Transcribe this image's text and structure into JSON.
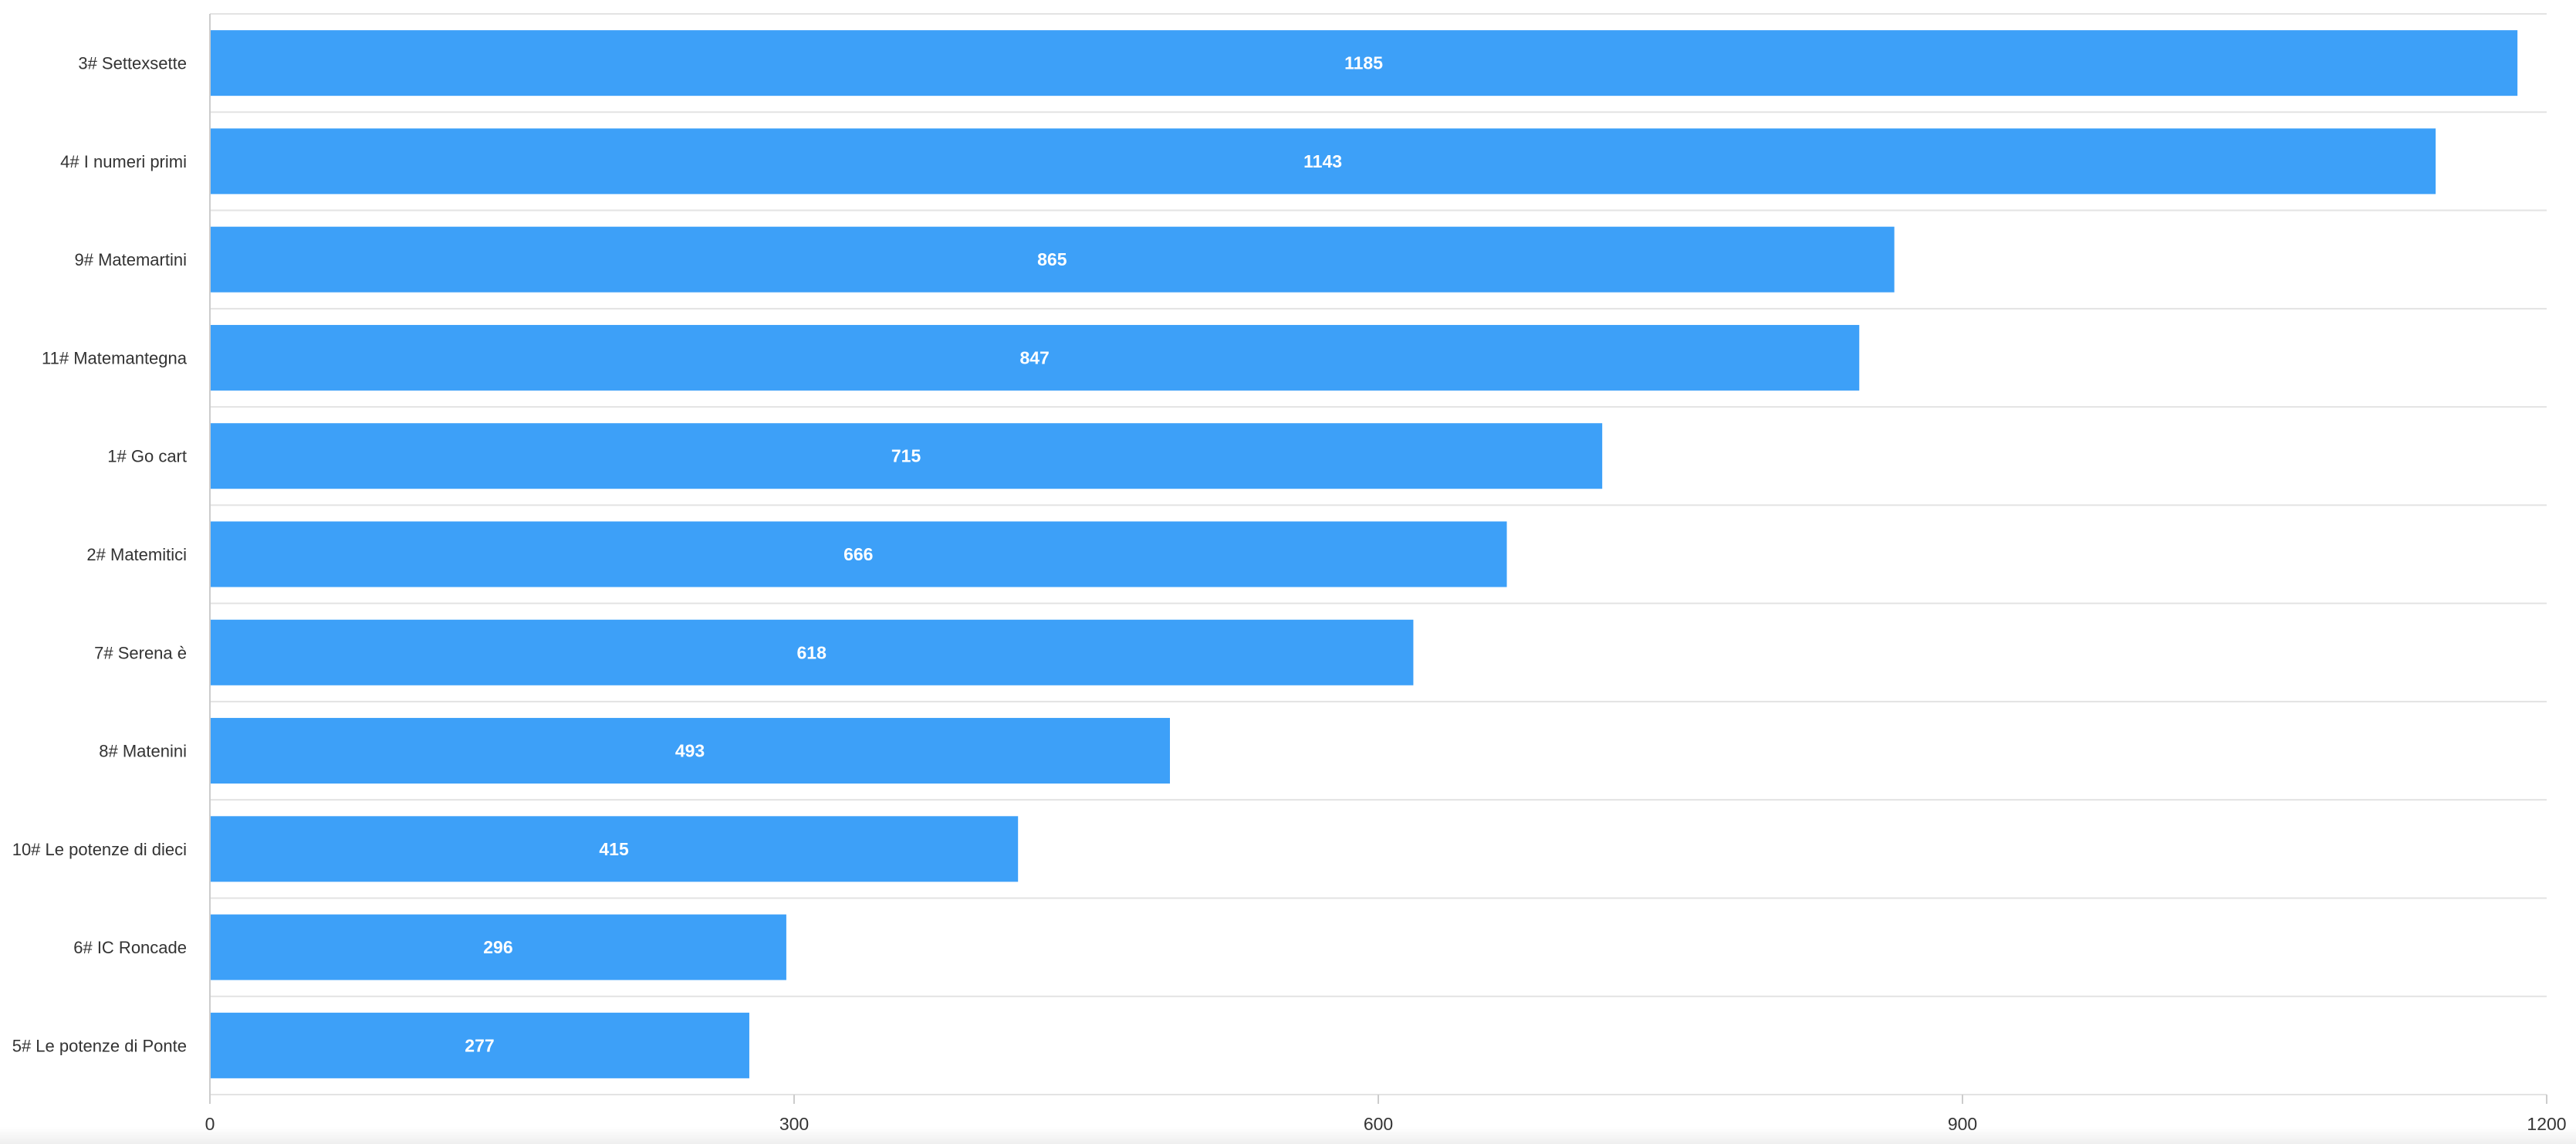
{
  "chart_data": {
    "type": "bar",
    "orientation": "horizontal",
    "categories": [
      "3# Settexsette",
      "4# I numeri primi",
      "9# Matemartini",
      "11# Matemantegna",
      "1# Go cart",
      "2# Matemitici",
      "7# Serena è",
      "8# Matenini",
      "10# Le potenze di dieci",
      "6# IC Roncade",
      "5# Le potenze di Ponte"
    ],
    "values": [
      1185,
      1143,
      865,
      847,
      715,
      666,
      618,
      493,
      415,
      296,
      277
    ],
    "data_labels": [
      "1185",
      "1143",
      "865",
      "847",
      "715",
      "666",
      "618",
      "493",
      "415",
      "296",
      "277"
    ],
    "xlim": [
      0,
      1200
    ],
    "x_ticks": [
      0,
      300,
      600,
      900,
      1200
    ],
    "x_tick_labels": [
      "0",
      "300",
      "600",
      "900",
      "1200"
    ],
    "grid": true,
    "legend": "none",
    "title": "",
    "xlabel": "",
    "ylabel": "",
    "colors": {
      "bar": "#3da0f8",
      "grid": "#e3e3e3",
      "axis": "#cccccc",
      "label": "#333333",
      "value_label": "#ffffff"
    }
  }
}
